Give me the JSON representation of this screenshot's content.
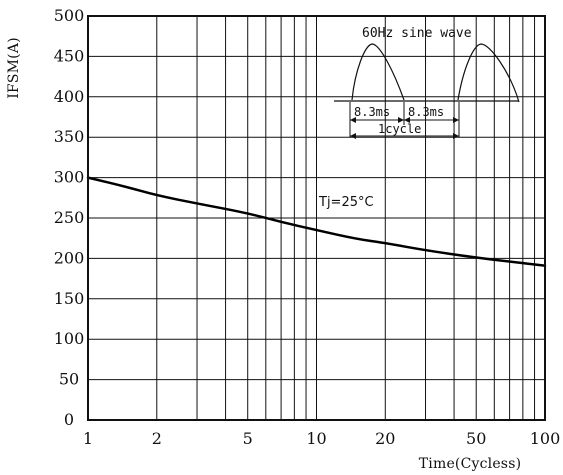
{
  "chart_data": {
    "type": "line",
    "scale": {
      "x": "log",
      "y": "linear"
    },
    "xlabel": "Time(Cycless)",
    "ylabel": "IFSM(A)",
    "xlim": [
      1,
      100
    ],
    "ylim": [
      0,
      500
    ],
    "x_ticks": [
      1,
      2,
      5,
      10,
      20,
      50,
      100
    ],
    "y_ticks": [
      0,
      50,
      100,
      150,
      200,
      250,
      300,
      350,
      400,
      450,
      500
    ],
    "grid": true,
    "series": [
      {
        "x": [
          1,
          1.5,
          2,
          3,
          5,
          7,
          10,
          15,
          20,
          30,
          50,
          70,
          100
        ],
        "y": [
          300,
          288,
          278,
          268,
          256,
          245,
          235,
          224,
          219,
          210,
          201,
          196,
          191
        ],
        "color": "#000000"
      }
    ],
    "annotation": {
      "condition_label": "Tj=25°C",
      "waveform": {
        "title": "60Hz sine wave",
        "half_cycle_label_1": "8.3ms",
        "half_cycle_label_2": "8.3ms",
        "cycle_label": "1cycle"
      }
    }
  }
}
